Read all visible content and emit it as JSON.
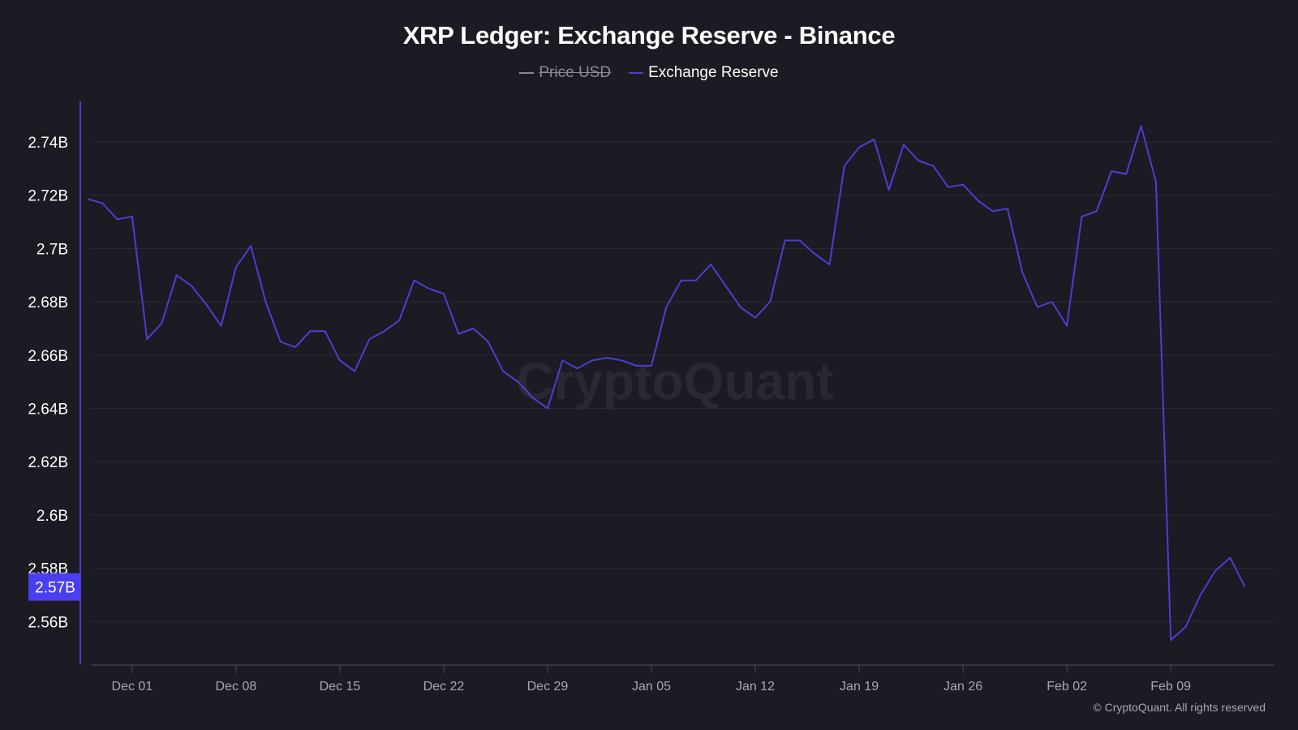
{
  "title": "XRP Ledger: Exchange Reserve - Binance",
  "legend": [
    {
      "label": "Price USD",
      "color": "#8c8a93",
      "hidden": true
    },
    {
      "label": "Exchange Reserve",
      "color": "#4b3fd1",
      "hidden": false
    }
  ],
  "watermark": "CryptoQuant",
  "copyright": "© CryptoQuant. All rights reserved",
  "current_value_badge": {
    "label": "2.57B",
    "color": "#4a3ff0"
  },
  "colors": {
    "background": "#1c1a22",
    "line": "#4b3fd1",
    "axis": "#4b3fd1",
    "grid": "#2c2a33"
  },
  "chart_data": {
    "type": "line",
    "title": "XRP Ledger: Exchange Reserve - Binance",
    "xlabel": "",
    "ylabel": "",
    "ylim": [
      2.545,
      2.75
    ],
    "grid": true,
    "legend_position": "top-center",
    "yticks": [
      "2.56B",
      "2.58B",
      "2.6B",
      "2.62B",
      "2.64B",
      "2.66B",
      "2.68B",
      "2.7B",
      "2.72B",
      "2.74B"
    ],
    "ytick_values": [
      2.56,
      2.58,
      2.6,
      2.62,
      2.64,
      2.66,
      2.68,
      2.7,
      2.72,
      2.74
    ],
    "xticks": [
      "Dec 01",
      "Dec 08",
      "Dec 15",
      "Dec 22",
      "Dec 29",
      "Jan 05",
      "Jan 12",
      "Jan 19",
      "Jan 26",
      "Feb 02",
      "Feb 09"
    ],
    "xtick_day_index": [
      3,
      10,
      17,
      24,
      31,
      38,
      45,
      52,
      59,
      66,
      73
    ],
    "series": [
      {
        "name": "Exchange Reserve",
        "unit": "B XRP",
        "x": [
          "Nov 28",
          "Nov 29",
          "Nov 30",
          "Dec 01",
          "Dec 02",
          "Dec 03",
          "Dec 04",
          "Dec 05",
          "Dec 06",
          "Dec 07",
          "Dec 08",
          "Dec 09",
          "Dec 10",
          "Dec 11",
          "Dec 12",
          "Dec 13",
          "Dec 14",
          "Dec 15",
          "Dec 16",
          "Dec 17",
          "Dec 18",
          "Dec 19",
          "Dec 20",
          "Dec 21",
          "Dec 22",
          "Dec 23",
          "Dec 24",
          "Dec 25",
          "Dec 26",
          "Dec 27",
          "Dec 28",
          "Dec 29",
          "Dec 30",
          "Dec 31",
          "Jan 01",
          "Jan 02",
          "Jan 03",
          "Jan 04",
          "Jan 05",
          "Jan 06",
          "Jan 07",
          "Jan 08",
          "Jan 09",
          "Jan 10",
          "Jan 11",
          "Jan 12",
          "Jan 13",
          "Jan 14",
          "Jan 15",
          "Jan 16",
          "Jan 17",
          "Jan 18",
          "Jan 19",
          "Jan 20",
          "Jan 21",
          "Jan 22",
          "Jan 23",
          "Jan 24",
          "Jan 25",
          "Jan 26",
          "Jan 27",
          "Jan 28",
          "Jan 29",
          "Jan 30",
          "Jan 31",
          "Feb 01",
          "Feb 02",
          "Feb 03",
          "Feb 04",
          "Feb 05",
          "Feb 06",
          "Feb 07",
          "Feb 08",
          "Feb 09",
          "Feb 10",
          "Feb 11",
          "Feb 12",
          "Feb 13",
          "Feb 14"
        ],
        "values": [
          2.7186,
          2.717,
          2.711,
          2.712,
          2.666,
          2.672,
          2.69,
          2.686,
          2.679,
          2.671,
          2.693,
          2.701,
          2.68,
          2.665,
          2.663,
          2.669,
          2.669,
          2.658,
          2.654,
          2.666,
          2.669,
          2.673,
          2.688,
          2.685,
          2.683,
          2.668,
          2.67,
          2.665,
          2.654,
          2.65,
          2.644,
          2.64,
          2.658,
          2.655,
          2.658,
          2.659,
          2.658,
          2.656,
          2.656,
          2.678,
          2.688,
          2.688,
          2.694,
          2.686,
          2.678,
          2.674,
          2.68,
          2.703,
          2.703,
          2.698,
          2.694,
          2.731,
          2.738,
          2.741,
          2.722,
          2.739,
          2.733,
          2.731,
          2.723,
          2.724,
          2.718,
          2.714,
          2.715,
          2.691,
          2.678,
          2.68,
          2.671,
          2.712,
          2.714,
          2.729,
          2.728,
          2.746,
          2.725,
          2.553,
          2.558,
          2.57,
          2.579,
          2.584,
          2.573
        ]
      },
      {
        "name": "Price USD",
        "hidden": true,
        "values": []
      }
    ]
  }
}
